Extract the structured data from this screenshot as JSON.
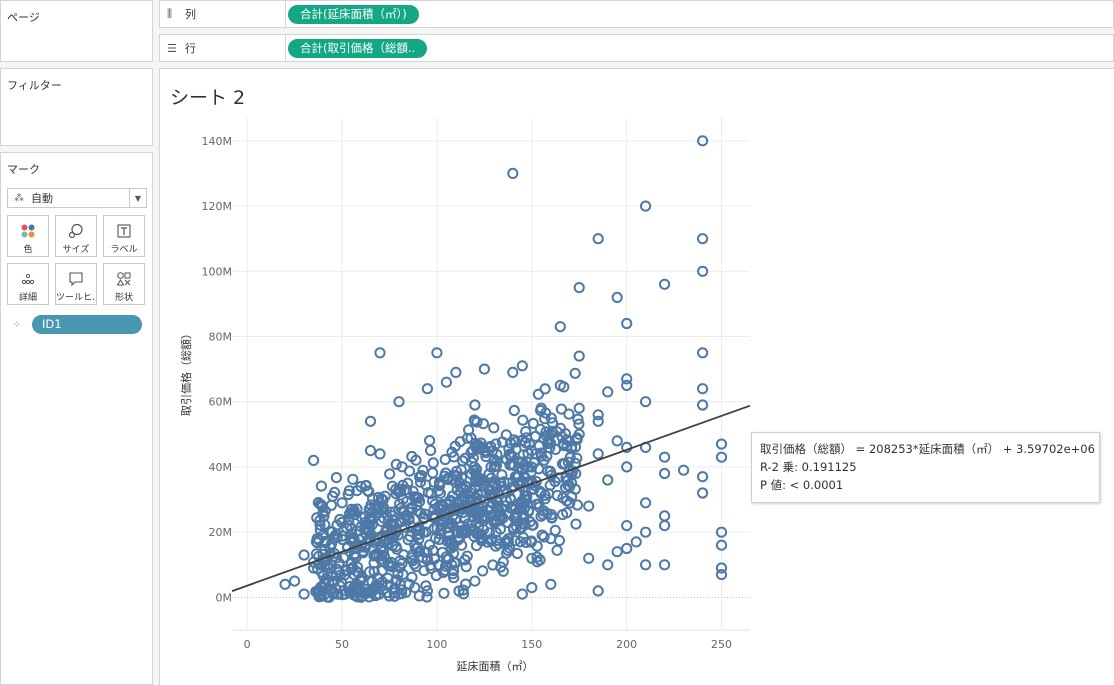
{
  "pages_card": {
    "title": "ページ"
  },
  "filters_card": {
    "title": "フィルター"
  },
  "marks_card": {
    "title": "マーク",
    "mark_type": "自動",
    "buttons": [
      {
        "label": "色",
        "icon": "color-icon"
      },
      {
        "label": "サイズ",
        "icon": "size-icon"
      },
      {
        "label": "ラベル",
        "icon": "label-icon"
      },
      {
        "label": "詳細",
        "icon": "detail-icon"
      },
      {
        "label": "ツールヒ…",
        "icon": "tooltip-icon"
      },
      {
        "label": "形状",
        "icon": "shape-icon"
      }
    ],
    "detail_field": "ID1"
  },
  "shelves": {
    "columns": {
      "label": "列",
      "pill": "合計(延床面積（㎡）)",
      "icon": "columns-icon"
    },
    "rows": {
      "label": "行",
      "pill": "合計(取引価格（総額..",
      "icon": "rows-icon"
    }
  },
  "sheet": {
    "title": "シート 2"
  },
  "chart_data": {
    "type": "scatter",
    "xlabel": "延床面積（㎡）",
    "ylabel": "取引価格（総額）",
    "xlim": [
      -8,
      265
    ],
    "ylim": [
      -10000000,
      147000000
    ],
    "x_ticks": [
      0,
      50,
      100,
      150,
      200,
      250
    ],
    "y_ticks": [
      0,
      20000000,
      40000000,
      60000000,
      80000000,
      100000000,
      120000000,
      140000000
    ],
    "y_tick_labels": [
      "0M",
      "20M",
      "40M",
      "60M",
      "80M",
      "100M",
      "120M",
      "140M"
    ],
    "marker": "hollow-circle",
    "color": "#4e79a7",
    "grid": true,
    "points": [
      [
        140,
        130000000
      ],
      [
        240,
        140000000
      ],
      [
        210,
        120000000
      ],
      [
        185,
        110000000
      ],
      [
        240,
        110000000
      ],
      [
        240,
        100000000
      ],
      [
        220,
        96000000
      ],
      [
        175,
        95000000
      ],
      [
        195,
        92000000
      ],
      [
        200,
        84000000
      ],
      [
        165,
        83000000
      ],
      [
        70,
        75000000
      ],
      [
        100,
        75000000
      ],
      [
        175,
        74000000
      ],
      [
        240,
        75000000
      ],
      [
        110,
        69000000
      ],
      [
        125,
        70000000
      ],
      [
        140,
        69000000
      ],
      [
        145,
        71000000
      ],
      [
        200,
        67000000
      ],
      [
        200,
        65000000
      ],
      [
        165,
        65000000
      ],
      [
        105,
        66000000
      ],
      [
        95,
        64000000
      ],
      [
        190,
        63000000
      ],
      [
        240,
        64000000
      ],
      [
        80,
        60000000
      ],
      [
        120,
        59000000
      ],
      [
        155,
        58000000
      ],
      [
        175,
        58000000
      ],
      [
        210,
        60000000
      ],
      [
        240,
        59000000
      ],
      [
        185,
        56000000
      ],
      [
        185,
        54000000
      ],
      [
        65,
        54000000
      ],
      [
        130,
        52000000
      ],
      [
        160,
        50000000
      ],
      [
        175,
        50000000
      ],
      [
        195,
        48000000
      ],
      [
        250,
        47000000
      ],
      [
        200,
        46000000
      ],
      [
        210,
        46000000
      ],
      [
        150,
        45000000
      ],
      [
        185,
        44000000
      ],
      [
        65,
        45000000
      ],
      [
        35,
        42000000
      ],
      [
        70,
        44000000
      ],
      [
        220,
        43000000
      ],
      [
        250,
        43000000
      ],
      [
        200,
        40000000
      ],
      [
        230,
        39000000
      ],
      [
        220,
        38000000
      ],
      [
        240,
        37000000
      ],
      [
        240,
        32000000
      ],
      [
        190,
        36000000
      ],
      [
        170,
        34000000
      ],
      [
        45,
        31000000
      ],
      [
        50,
        29000000
      ],
      [
        55,
        27000000
      ],
      [
        60,
        34000000
      ],
      [
        210,
        29000000
      ],
      [
        220,
        25000000
      ],
      [
        250,
        20000000
      ],
      [
        250,
        16000000
      ],
      [
        220,
        22000000
      ],
      [
        210,
        20000000
      ],
      [
        200,
        15000000
      ],
      [
        195,
        14000000
      ],
      [
        180,
        12000000
      ],
      [
        190,
        10000000
      ],
      [
        210,
        10000000
      ],
      [
        220,
        10000000
      ],
      [
        250,
        9000000
      ],
      [
        250,
        7000000
      ],
      [
        30,
        13000000
      ],
      [
        25,
        5000000
      ],
      [
        20,
        4000000
      ],
      [
        40,
        3000000
      ],
      [
        30,
        1000000
      ],
      [
        185,
        2000000
      ],
      [
        160,
        4000000
      ],
      [
        150,
        3000000
      ],
      [
        145,
        1000000
      ],
      [
        35,
        9000000
      ],
      [
        40,
        19000000
      ],
      [
        205,
        17000000
      ],
      [
        200,
        22000000
      ],
      [
        180,
        28000000
      ],
      [
        160,
        18000000
      ],
      [
        150,
        12000000
      ],
      [
        135,
        8000000
      ],
      [
        120,
        5000000
      ],
      [
        95,
        2000000
      ],
      [
        80,
        1000000
      ],
      [
        60,
        2000000
      ]
    ],
    "trend_line": {
      "slope": 208253,
      "intercept": 3597020,
      "x_range": [
        -8,
        265
      ]
    },
    "tooltip": {
      "equation": "取引価格（総額） = 208253*延床面積（㎡） + 3.59702e+06",
      "r_squared": "R-2 乗: 0.191125",
      "p_value": "P 値: < 0.0001"
    }
  }
}
